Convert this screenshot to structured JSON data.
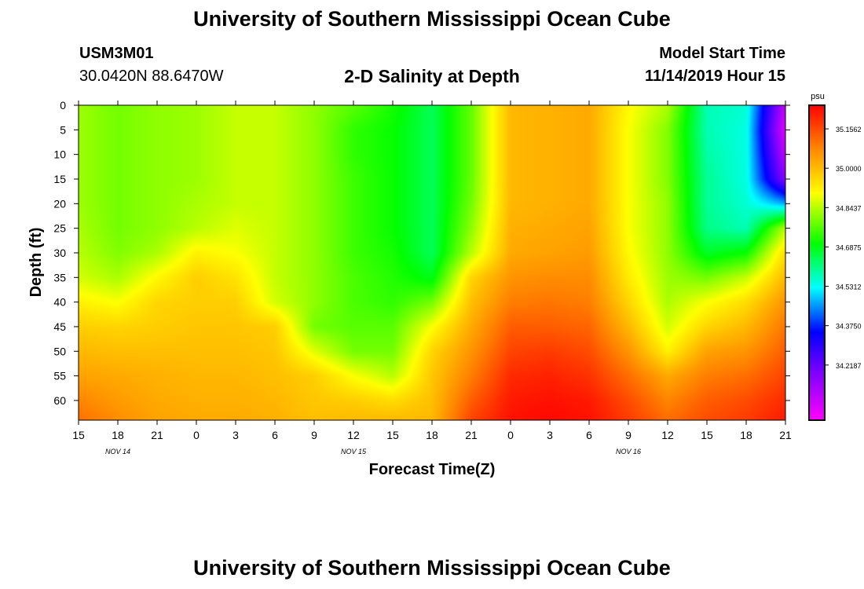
{
  "title": "University of Southern Mississippi Ocean Cube",
  "station": {
    "id": "USM3M01",
    "coords": "30.0420N 88.6470W"
  },
  "plot_title": "2-D Salinity at Depth",
  "model": {
    "label": "Model Start Time",
    "time": "11/14/2019 Hour 15"
  },
  "footer_title": "University of Southern Mississippi Ocean Cube",
  "chart_data": {
    "type": "heatmap",
    "title": "2-D Salinity at Depth",
    "xlabel": "Forecast Time(Z)",
    "ylabel": "Depth (ft)",
    "x_ticks": [
      "15",
      "18",
      "21",
      "0",
      "3",
      "6",
      "9",
      "12",
      "15",
      "18",
      "21",
      "0",
      "3",
      "6",
      "9",
      "12",
      "15",
      "18",
      "21"
    ],
    "date_labels": [
      {
        "label": "NOV 14",
        "tick_index": 1
      },
      {
        "label": "NOV 15",
        "tick_index": 7
      },
      {
        "label": "NOV 16",
        "tick_index": 14
      }
    ],
    "y_ticks": [
      0,
      5,
      10,
      15,
      20,
      25,
      30,
      35,
      40,
      45,
      50,
      55,
      60
    ],
    "ylim": [
      0,
      64
    ],
    "colorbar": {
      "unit": "psu",
      "labels": [
        "35.1562",
        "35.0000",
        "34.8437",
        "34.6875",
        "34.5312",
        "34.3750",
        "34.2187"
      ],
      "range": [
        34.06,
        35.23
      ],
      "colors": [
        "#ff00ff",
        "#8000ff",
        "#0000ff",
        "#00ffff",
        "#00ff00",
        "#ffff00",
        "#ff8000",
        "#ff0000"
      ]
    },
    "profiles": {
      "hours": [
        0,
        6,
        12,
        18,
        24,
        30,
        36,
        42,
        48,
        54,
        60,
        66,
        72,
        78,
        84,
        90,
        96,
        102,
        108
      ],
      "depths": [
        0,
        5,
        10,
        15,
        20,
        25,
        30,
        35,
        40,
        45,
        50,
        55,
        60,
        64
      ],
      "salinity_columns": [
        [
          34.83,
          34.83,
          34.83,
          34.83,
          34.83,
          34.84,
          34.85,
          34.87,
          34.92,
          34.97,
          35.0,
          35.03,
          35.07,
          35.1
        ],
        [
          34.8,
          34.8,
          34.8,
          34.8,
          34.8,
          34.8,
          34.81,
          34.84,
          34.9,
          34.96,
          34.99,
          35.02,
          35.04,
          35.06
        ],
        [
          34.82,
          34.82,
          34.82,
          34.82,
          34.82,
          34.82,
          34.84,
          34.91,
          34.96,
          34.97,
          34.99,
          35.01,
          35.02,
          35.03
        ],
        [
          34.83,
          34.83,
          34.83,
          34.83,
          34.84,
          34.85,
          34.92,
          34.97,
          34.97,
          34.98,
          34.99,
          35.0,
          35.01,
          35.02
        ],
        [
          34.86,
          34.86,
          34.86,
          34.86,
          34.86,
          34.88,
          34.9,
          34.94,
          34.97,
          34.98,
          34.99,
          35.0,
          35.01,
          35.02
        ],
        [
          34.86,
          34.86,
          34.86,
          34.86,
          34.86,
          34.86,
          34.86,
          34.86,
          34.87,
          34.97,
          34.98,
          34.99,
          35.0,
          35.01
        ],
        [
          34.82,
          34.82,
          34.82,
          34.82,
          34.82,
          34.82,
          34.82,
          34.82,
          34.82,
          34.8,
          34.88,
          34.97,
          34.98,
          34.99
        ],
        [
          34.78,
          34.75,
          34.75,
          34.76,
          34.76,
          34.76,
          34.76,
          34.77,
          34.77,
          34.78,
          34.8,
          34.9,
          34.97,
          35.0
        ],
        [
          34.73,
          34.72,
          34.72,
          34.72,
          34.72,
          34.72,
          34.73,
          34.74,
          34.75,
          34.78,
          34.8,
          34.85,
          34.95,
          35.0
        ],
        [
          34.66,
          34.66,
          34.66,
          34.66,
          34.66,
          34.66,
          34.66,
          34.7,
          34.8,
          34.9,
          34.96,
          34.98,
          34.99,
          35.0
        ],
        [
          34.79,
          34.79,
          34.79,
          34.79,
          34.8,
          34.82,
          34.85,
          34.96,
          34.99,
          35.02,
          35.05,
          35.08,
          35.12,
          35.15
        ],
        [
          35.0,
          35.0,
          35.0,
          35.0,
          35.0,
          35.01,
          35.02,
          35.05,
          35.08,
          35.12,
          35.15,
          35.18,
          35.2,
          35.21
        ],
        [
          35.01,
          35.01,
          35.01,
          35.01,
          35.01,
          35.02,
          35.03,
          35.06,
          35.09,
          35.12,
          35.16,
          35.19,
          35.21,
          35.22
        ],
        [
          35.02,
          35.02,
          35.02,
          35.02,
          35.02,
          35.03,
          35.04,
          35.06,
          35.08,
          35.11,
          35.14,
          35.17,
          35.2,
          35.21
        ],
        [
          34.91,
          34.9,
          34.9,
          34.9,
          34.9,
          34.9,
          34.91,
          34.93,
          34.96,
          35.0,
          35.05,
          35.1,
          35.14,
          35.16
        ],
        [
          34.84,
          34.81,
          34.81,
          34.81,
          34.82,
          34.82,
          34.82,
          34.83,
          34.84,
          34.87,
          34.92,
          35.02,
          35.07,
          35.1
        ],
        [
          34.6,
          34.6,
          34.61,
          34.62,
          34.62,
          34.63,
          34.69,
          34.8,
          34.9,
          34.96,
          35.03,
          35.08,
          35.12,
          35.14
        ],
        [
          34.58,
          34.57,
          34.57,
          34.57,
          34.58,
          34.6,
          34.72,
          34.86,
          34.95,
          35.0,
          35.05,
          35.1,
          35.14,
          35.16
        ],
        [
          34.14,
          34.1,
          34.15,
          34.22,
          34.5,
          34.85,
          34.95,
          35.0,
          35.05,
          35.09,
          35.12,
          35.15,
          35.18,
          35.2
        ]
      ]
    }
  }
}
